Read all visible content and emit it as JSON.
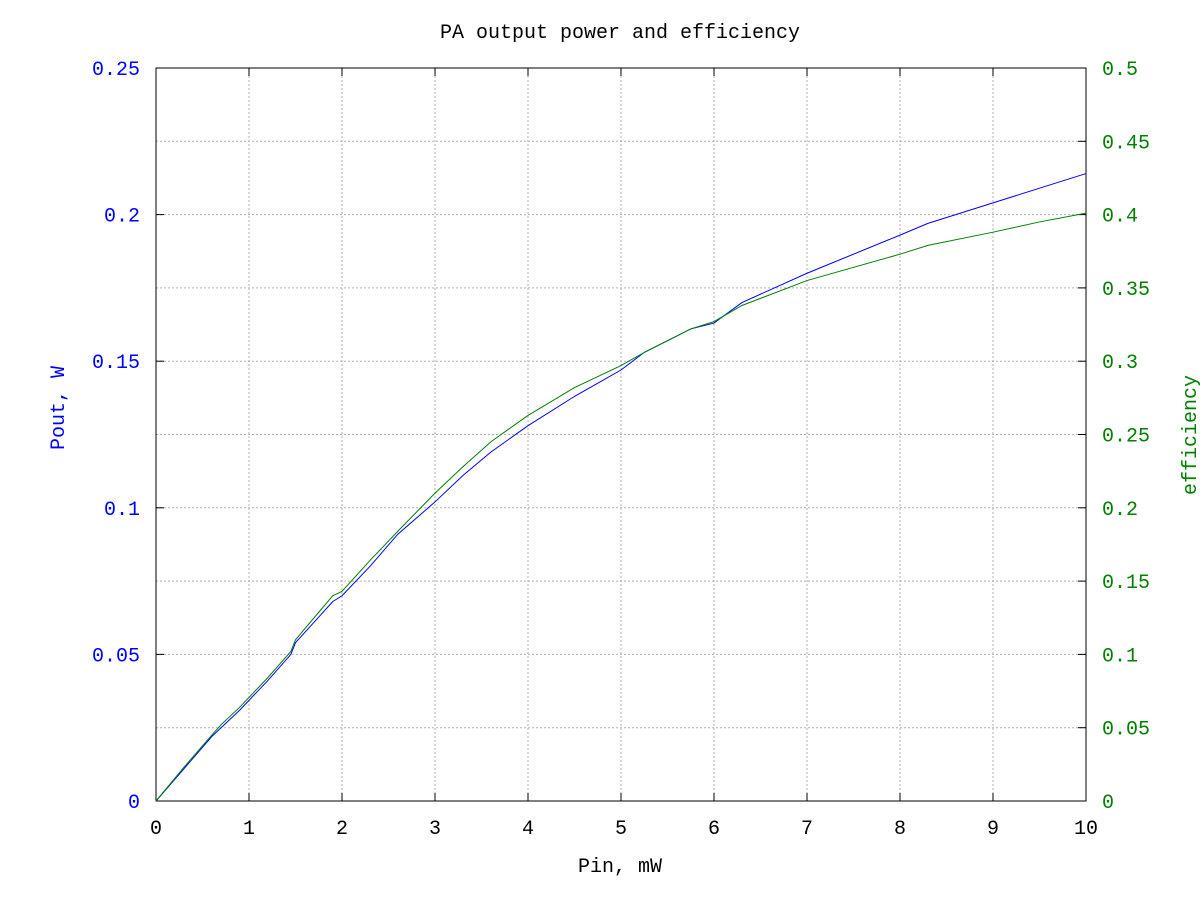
{
  "chart_data": {
    "type": "line",
    "title": "PA output power and efficiency",
    "xlabel": "Pin, mW",
    "ylabel": "Pout, W",
    "y2label": "efficiency",
    "xlim": [
      0,
      10
    ],
    "ylim": [
      0,
      0.25
    ],
    "y2lim": [
      0,
      0.5
    ],
    "xticks": [
      "0",
      "1",
      "2",
      "3",
      "4",
      "5",
      "6",
      "7",
      "8",
      "9",
      "10"
    ],
    "yticks": [
      "0",
      "0.05",
      "0.1",
      "0.15",
      "0.2",
      "0.25"
    ],
    "y2ticks": [
      "0",
      "0.05",
      "0.1",
      "0.15",
      "0.2",
      "0.25",
      "0.3",
      "0.35",
      "0.4",
      "0.45",
      "0.5"
    ],
    "grid": true,
    "colors": {
      "pout": "#0000ff",
      "efficiency": "#008000",
      "axis_text": "#000000"
    },
    "series": [
      {
        "axis": "left",
        "x": [
          0,
          0.3,
          0.6,
          0.7,
          0.9,
          1.2,
          1.45,
          1.5,
          1.7,
          1.9,
          2.0,
          2.3,
          2.6,
          3.0,
          3.3,
          3.6,
          4.0,
          4.5,
          5.0,
          5.25,
          5.75,
          6.0,
          6.3,
          7.0,
          8.0,
          8.3,
          9.0,
          9.5,
          10.0
        ],
        "values": [
          0,
          0.011,
          0.022,
          0.025,
          0.031,
          0.041,
          0.05,
          0.054,
          0.061,
          0.068,
          0.07,
          0.08,
          0.091,
          0.102,
          0.111,
          0.119,
          0.128,
          0.138,
          0.147,
          0.153,
          0.161,
          0.163,
          0.17,
          0.18,
          0.193,
          0.197,
          0.204,
          0.209,
          0.214
        ]
      },
      {
        "axis": "right",
        "x": [
          0,
          0.3,
          0.6,
          0.7,
          0.9,
          1.2,
          1.45,
          1.5,
          1.7,
          1.9,
          2.0,
          2.3,
          2.6,
          3.0,
          3.3,
          3.6,
          4.0,
          4.5,
          5.0,
          5.25,
          5.75,
          6.0,
          6.3,
          7.0,
          8.0,
          8.3,
          9.0,
          9.5,
          10.0
        ],
        "values": [
          0,
          0.023,
          0.045,
          0.052,
          0.064,
          0.084,
          0.102,
          0.11,
          0.125,
          0.14,
          0.143,
          0.164,
          0.184,
          0.21,
          0.228,
          0.245,
          0.263,
          0.282,
          0.297,
          0.306,
          0.322,
          0.327,
          0.338,
          0.355,
          0.373,
          0.379,
          0.388,
          0.395,
          0.401
        ]
      }
    ]
  }
}
